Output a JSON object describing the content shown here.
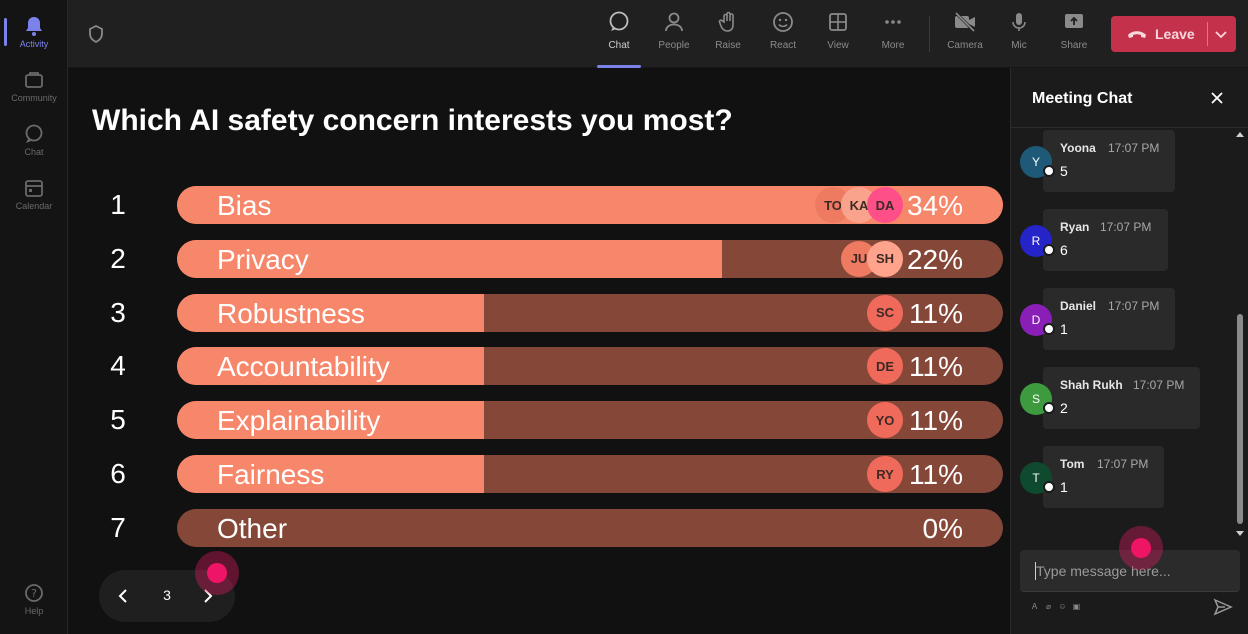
{
  "rail": {
    "items": [
      {
        "label": "Activity",
        "icon": "bell-icon"
      },
      {
        "label": "Community",
        "icon": "community-icon"
      },
      {
        "label": "Chat",
        "icon": "chat-icon"
      },
      {
        "label": "Calendar",
        "icon": "calendar-icon"
      }
    ],
    "help": "Help"
  },
  "toolbar": {
    "chat": "Chat",
    "people": "People",
    "raise": "Raise",
    "react": "React",
    "view": "View",
    "more": "More",
    "camera": "Camera",
    "mic": "Mic",
    "share": "Share",
    "leave": "Leave"
  },
  "poll": {
    "question": "Which AI safety concern interests you most?",
    "options": [
      {
        "num": "1",
        "label": "Bias",
        "percent": "34%",
        "fill": 1.0,
        "voters": [
          "TO",
          "KA",
          "DA"
        ]
      },
      {
        "num": "2",
        "label": "Privacy",
        "percent": "22%",
        "fill": 0.66,
        "voters": [
          "JU",
          "SH"
        ]
      },
      {
        "num": "3",
        "label": "Robustness",
        "percent": "11%",
        "fill": 0.372,
        "voters": [
          "SC"
        ]
      },
      {
        "num": "4",
        "label": "Accountability",
        "percent": "11%",
        "fill": 0.372,
        "voters": [
          "DE"
        ]
      },
      {
        "num": "5",
        "label": "Explainability",
        "percent": "11%",
        "fill": 0.372,
        "voters": [
          "YO"
        ]
      },
      {
        "num": "6",
        "label": "Fairness",
        "percent": "11%",
        "fill": 0.372,
        "voters": [
          "RY"
        ]
      },
      {
        "num": "7",
        "label": "Other",
        "percent": "0%",
        "fill": 0.0,
        "voters": []
      }
    ]
  },
  "pager": {
    "page": "3"
  },
  "chat": {
    "title": "Meeting Chat",
    "messages": [
      {
        "initial": "Y",
        "name": "Yoona",
        "time": "17:07 PM",
        "text": "5",
        "color": "#1e5a78"
      },
      {
        "initial": "R",
        "name": "Ryan",
        "time": "17:07 PM",
        "text": "6",
        "color": "#2424c8"
      },
      {
        "initial": "D",
        "name": "Daniel",
        "time": "17:07 PM",
        "text": "1",
        "color": "#8a1fb8"
      },
      {
        "initial": "S",
        "name": "Shah Rukh",
        "time": "17:07 PM",
        "text": "2",
        "color": "#3e9a3e"
      },
      {
        "initial": "T",
        "name": "Tom",
        "time": "17:07 PM",
        "text": "1",
        "color": "#0f4a2e"
      }
    ],
    "placeholder": "Type message here..."
  },
  "colors": {
    "bar_fill": "#f7876a",
    "bar_track": "#854838",
    "leave": "#c4314b",
    "accent": "#7b83eb"
  }
}
